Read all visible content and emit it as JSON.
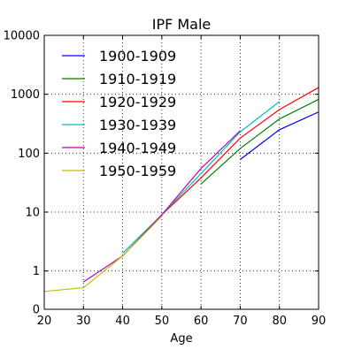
{
  "chart_data": {
    "type": "line",
    "title": "IPF Male",
    "xlabel": "Age",
    "ylabel": "",
    "xlim": [
      20,
      90
    ],
    "ylim_log10": [
      -0.65,
      4
    ],
    "y_scale": "log",
    "grid": true,
    "legend_placement": "top-left",
    "x_ticks": [
      20,
      30,
      40,
      50,
      60,
      70,
      80,
      90
    ],
    "x_tick_labels": [
      "20",
      "30",
      "40",
      "50",
      "60",
      "70",
      "80",
      "90"
    ],
    "y_ticks": [
      1,
      10,
      100,
      1000,
      10000
    ],
    "y_tick_labels": [
      "1",
      "10",
      "100",
      "1000",
      "10000"
    ],
    "y_bottom_label": "0",
    "series": [
      {
        "name": "1900-1909",
        "color": "#0000ff",
        "x": [
          70,
          80,
          90
        ],
        "y": [
          78,
          250,
          500
        ]
      },
      {
        "name": "1910-1919",
        "color": "#008000",
        "x": [
          60,
          70,
          80,
          90
        ],
        "y": [
          30,
          120,
          380,
          820
        ]
      },
      {
        "name": "1920-1929",
        "color": "#ff0000",
        "x": [
          50,
          60,
          70,
          80,
          90
        ],
        "y": [
          9,
          38,
          180,
          550,
          1300
        ]
      },
      {
        "name": "1930-1939",
        "color": "#00bfbf",
        "x": [
          40,
          50,
          60,
          70,
          80
        ],
        "y": [
          2.0,
          9,
          45,
          230,
          750
        ]
      },
      {
        "name": "1940-1949",
        "color": "#bf00bf",
        "x": [
          30,
          40,
          50,
          60,
          70
        ],
        "y": [
          0.65,
          1.8,
          9,
          55,
          240
        ]
      },
      {
        "name": "1950-1959",
        "color": "#bfbf00",
        "x": [
          20,
          30,
          40,
          50
        ],
        "y": [
          0.45,
          0.52,
          1.8,
          8.5
        ]
      }
    ]
  }
}
